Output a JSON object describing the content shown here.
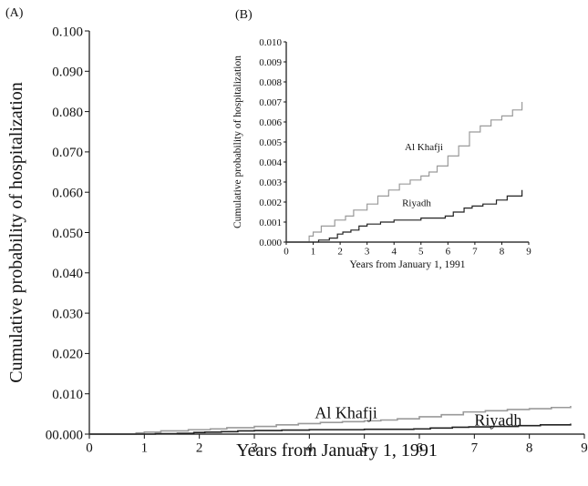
{
  "chart_data": [
    {
      "panel_label": "(A)",
      "type": "line",
      "title": "",
      "xlabel": "Years from January 1, 1991",
      "ylabel": "Cumulative probability of hospitalization",
      "xlim": [
        0,
        9
      ],
      "ylim": [
        0,
        0.1
      ],
      "x_ticks": [
        "0",
        "1",
        "2",
        "3",
        "4",
        "5",
        "6",
        "7",
        "8",
        "9"
      ],
      "y_ticks": [
        "00.000",
        "0.010",
        "0.020",
        "0.030",
        "0.040",
        "0.050",
        "0.060",
        "0.070",
        "0.080",
        "0.090",
        "0.100"
      ],
      "grid": false,
      "series": [
        {
          "name": "Al Khafji",
          "color": "#9a9a9a",
          "x": [
            0,
            0.7,
            0.85,
            1.0,
            1.3,
            1.8,
            2.2,
            2.5,
            3.0,
            3.4,
            3.8,
            4.2,
            4.6,
            5.0,
            5.3,
            5.6,
            6.0,
            6.4,
            6.8,
            7.2,
            7.6,
            8.0,
            8.4,
            8.75
          ],
          "y": [
            0,
            0,
            0.0003,
            0.0005,
            0.0008,
            0.0011,
            0.0013,
            0.0016,
            0.0019,
            0.0023,
            0.0026,
            0.0029,
            0.0031,
            0.0033,
            0.0035,
            0.0038,
            0.0043,
            0.0048,
            0.0055,
            0.0058,
            0.0061,
            0.0063,
            0.0066,
            0.007
          ]
        },
        {
          "name": "Riyadh",
          "color": "#222222",
          "x": [
            0,
            0.9,
            1.2,
            1.6,
            1.9,
            2.1,
            2.4,
            2.7,
            3.0,
            3.5,
            4.0,
            4.5,
            5.0,
            5.5,
            5.9,
            6.2,
            6.6,
            6.9,
            7.3,
            7.8,
            8.2,
            8.75
          ],
          "y": [
            0,
            0,
            0.0001,
            0.0002,
            0.0004,
            0.0005,
            0.0006,
            0.0008,
            0.0009,
            0.001,
            0.0011,
            0.0011,
            0.0012,
            0.0012,
            0.0013,
            0.0015,
            0.0017,
            0.0018,
            0.0019,
            0.0021,
            0.0023,
            0.0026
          ]
        }
      ]
    },
    {
      "panel_label": "(B)",
      "type": "line",
      "title": "",
      "xlabel": "Years from January 1, 1991",
      "ylabel": "Cumulative probability of hospitalization",
      "xlim": [
        0,
        9
      ],
      "ylim": [
        0,
        0.01
      ],
      "x_ticks": [
        "0",
        "1",
        "2",
        "3",
        "4",
        "5",
        "6",
        "7",
        "8",
        "9"
      ],
      "y_ticks": [
        "0.000",
        "0.001",
        "0.002",
        "0.003",
        "0.004",
        "0.005",
        "0.006",
        "0.007",
        "0.008",
        "0.009",
        "0.010"
      ],
      "grid": false,
      "series": [
        {
          "name": "Al Khafji",
          "color": "#9a9a9a",
          "x": [
            0,
            0.7,
            0.85,
            1.0,
            1.3,
            1.8,
            2.2,
            2.5,
            3.0,
            3.4,
            3.8,
            4.2,
            4.6,
            5.0,
            5.3,
            5.6,
            6.0,
            6.4,
            6.8,
            7.2,
            7.6,
            8.0,
            8.4,
            8.75
          ],
          "y": [
            0,
            0,
            0.0003,
            0.0005,
            0.0008,
            0.0011,
            0.0013,
            0.0016,
            0.0019,
            0.0023,
            0.0026,
            0.0029,
            0.0031,
            0.0033,
            0.0035,
            0.0038,
            0.0043,
            0.0048,
            0.0055,
            0.0058,
            0.0061,
            0.0063,
            0.0066,
            0.007
          ]
        },
        {
          "name": "Riyadh",
          "color": "#222222",
          "x": [
            0,
            0.9,
            1.2,
            1.6,
            1.9,
            2.1,
            2.4,
            2.7,
            3.0,
            3.5,
            4.0,
            4.5,
            5.0,
            5.5,
            5.9,
            6.2,
            6.6,
            6.9,
            7.3,
            7.8,
            8.2,
            8.75
          ],
          "y": [
            0,
            0,
            0.0001,
            0.0002,
            0.0004,
            0.0005,
            0.0006,
            0.0008,
            0.0009,
            0.001,
            0.0011,
            0.0011,
            0.0012,
            0.0012,
            0.0013,
            0.0015,
            0.0017,
            0.0018,
            0.0019,
            0.0021,
            0.0023,
            0.0026
          ]
        }
      ]
    }
  ]
}
